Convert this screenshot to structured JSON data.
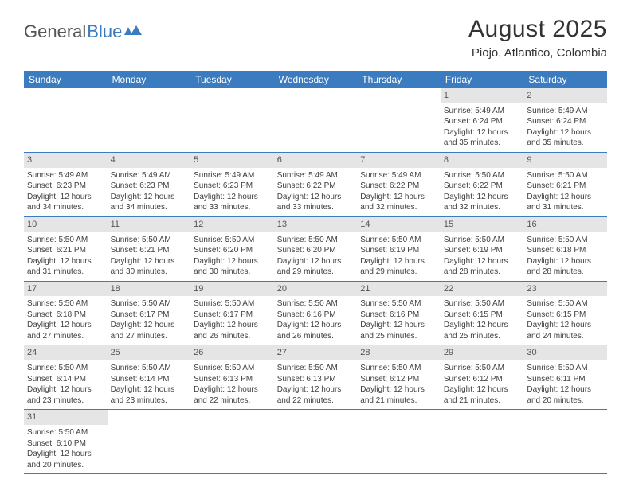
{
  "logo": {
    "text1": "General",
    "text2": "Blue"
  },
  "title": "August 2025",
  "location": "Piojo, Atlantico, Colombia",
  "weekdays": [
    "Sunday",
    "Monday",
    "Tuesday",
    "Wednesday",
    "Thursday",
    "Friday",
    "Saturday"
  ],
  "colors": {
    "headerBg": "#3b7bbf",
    "headerText": "#ffffff",
    "dayBarBg": "#e5e5e5",
    "borderColor": "#3b7bbf"
  },
  "weeks": [
    [
      null,
      null,
      null,
      null,
      null,
      {
        "n": "1",
        "sr": "5:49 AM",
        "ss": "6:24 PM",
        "dl": "12 hours",
        "dm": "and 35 minutes."
      },
      {
        "n": "2",
        "sr": "5:49 AM",
        "ss": "6:24 PM",
        "dl": "12 hours",
        "dm": "and 35 minutes."
      }
    ],
    [
      {
        "n": "3",
        "sr": "5:49 AM",
        "ss": "6:23 PM",
        "dl": "12 hours",
        "dm": "and 34 minutes."
      },
      {
        "n": "4",
        "sr": "5:49 AM",
        "ss": "6:23 PM",
        "dl": "12 hours",
        "dm": "and 34 minutes."
      },
      {
        "n": "5",
        "sr": "5:49 AM",
        "ss": "6:23 PM",
        "dl": "12 hours",
        "dm": "and 33 minutes."
      },
      {
        "n": "6",
        "sr": "5:49 AM",
        "ss": "6:22 PM",
        "dl": "12 hours",
        "dm": "and 33 minutes."
      },
      {
        "n": "7",
        "sr": "5:49 AM",
        "ss": "6:22 PM",
        "dl": "12 hours",
        "dm": "and 32 minutes."
      },
      {
        "n": "8",
        "sr": "5:50 AM",
        "ss": "6:22 PM",
        "dl": "12 hours",
        "dm": "and 32 minutes."
      },
      {
        "n": "9",
        "sr": "5:50 AM",
        "ss": "6:21 PM",
        "dl": "12 hours",
        "dm": "and 31 minutes."
      }
    ],
    [
      {
        "n": "10",
        "sr": "5:50 AM",
        "ss": "6:21 PM",
        "dl": "12 hours",
        "dm": "and 31 minutes."
      },
      {
        "n": "11",
        "sr": "5:50 AM",
        "ss": "6:21 PM",
        "dl": "12 hours",
        "dm": "and 30 minutes."
      },
      {
        "n": "12",
        "sr": "5:50 AM",
        "ss": "6:20 PM",
        "dl": "12 hours",
        "dm": "and 30 minutes."
      },
      {
        "n": "13",
        "sr": "5:50 AM",
        "ss": "6:20 PM",
        "dl": "12 hours",
        "dm": "and 29 minutes."
      },
      {
        "n": "14",
        "sr": "5:50 AM",
        "ss": "6:19 PM",
        "dl": "12 hours",
        "dm": "and 29 minutes."
      },
      {
        "n": "15",
        "sr": "5:50 AM",
        "ss": "6:19 PM",
        "dl": "12 hours",
        "dm": "and 28 minutes."
      },
      {
        "n": "16",
        "sr": "5:50 AM",
        "ss": "6:18 PM",
        "dl": "12 hours",
        "dm": "and 28 minutes."
      }
    ],
    [
      {
        "n": "17",
        "sr": "5:50 AM",
        "ss": "6:18 PM",
        "dl": "12 hours",
        "dm": "and 27 minutes."
      },
      {
        "n": "18",
        "sr": "5:50 AM",
        "ss": "6:17 PM",
        "dl": "12 hours",
        "dm": "and 27 minutes."
      },
      {
        "n": "19",
        "sr": "5:50 AM",
        "ss": "6:17 PM",
        "dl": "12 hours",
        "dm": "and 26 minutes."
      },
      {
        "n": "20",
        "sr": "5:50 AM",
        "ss": "6:16 PM",
        "dl": "12 hours",
        "dm": "and 26 minutes."
      },
      {
        "n": "21",
        "sr": "5:50 AM",
        "ss": "6:16 PM",
        "dl": "12 hours",
        "dm": "and 25 minutes."
      },
      {
        "n": "22",
        "sr": "5:50 AM",
        "ss": "6:15 PM",
        "dl": "12 hours",
        "dm": "and 25 minutes."
      },
      {
        "n": "23",
        "sr": "5:50 AM",
        "ss": "6:15 PM",
        "dl": "12 hours",
        "dm": "and 24 minutes."
      }
    ],
    [
      {
        "n": "24",
        "sr": "5:50 AM",
        "ss": "6:14 PM",
        "dl": "12 hours",
        "dm": "and 23 minutes."
      },
      {
        "n": "25",
        "sr": "5:50 AM",
        "ss": "6:14 PM",
        "dl": "12 hours",
        "dm": "and 23 minutes."
      },
      {
        "n": "26",
        "sr": "5:50 AM",
        "ss": "6:13 PM",
        "dl": "12 hours",
        "dm": "and 22 minutes."
      },
      {
        "n": "27",
        "sr": "5:50 AM",
        "ss": "6:13 PM",
        "dl": "12 hours",
        "dm": "and 22 minutes."
      },
      {
        "n": "28",
        "sr": "5:50 AM",
        "ss": "6:12 PM",
        "dl": "12 hours",
        "dm": "and 21 minutes."
      },
      {
        "n": "29",
        "sr": "5:50 AM",
        "ss": "6:12 PM",
        "dl": "12 hours",
        "dm": "and 21 minutes."
      },
      {
        "n": "30",
        "sr": "5:50 AM",
        "ss": "6:11 PM",
        "dl": "12 hours",
        "dm": "and 20 minutes."
      }
    ],
    [
      {
        "n": "31",
        "sr": "5:50 AM",
        "ss": "6:10 PM",
        "dl": "12 hours",
        "dm": "and 20 minutes."
      },
      null,
      null,
      null,
      null,
      null,
      null
    ]
  ],
  "labels": {
    "sunrise": "Sunrise: ",
    "sunset": "Sunset: ",
    "daylight": "Daylight: "
  }
}
